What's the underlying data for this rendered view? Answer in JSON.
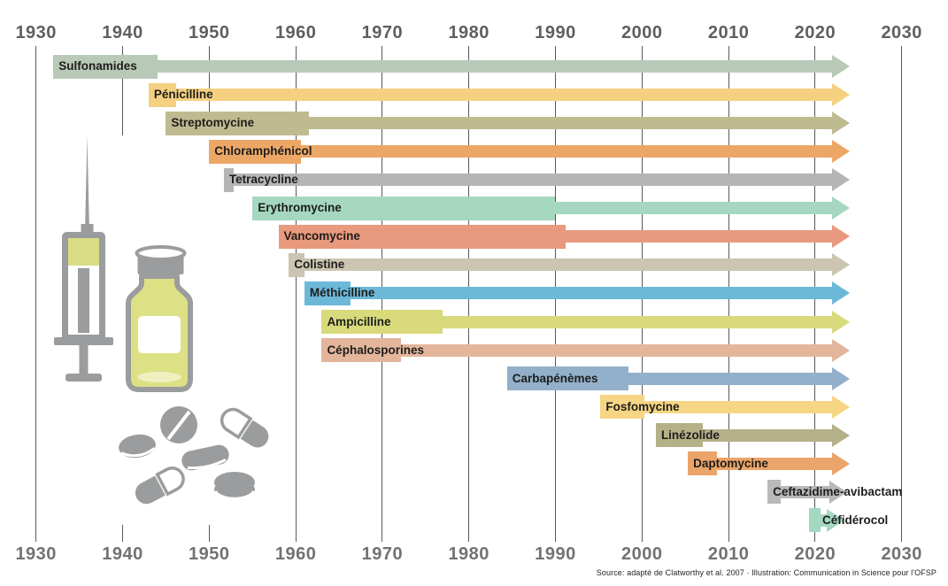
{
  "footer": {
    "text": "Source: adapté de Clatworthy et al. 2007 · Illustration: Communication in Science pour l'OFSP"
  },
  "illustration": {
    "icons": [
      "syringe-icon",
      "vial-icon",
      "pills-icon"
    ],
    "gray": "#9b9c9e",
    "liquid": "#d9dd85"
  },
  "axis": {
    "gridline_color": "#58595b",
    "top_label_color": "#5e5f62",
    "bottom_label_color": "#717274"
  },
  "chart_data": {
    "type": "timeline",
    "title": "",
    "xlabel": "",
    "ylabel": "",
    "x_axis": {
      "min": 1930,
      "max": 2030,
      "tick_interval": 10,
      "ticks": [
        1930,
        1940,
        1950,
        1960,
        1970,
        1980,
        1990,
        2000,
        2010,
        2020,
        2030
      ],
      "ticks_shown_top_and_bottom": true,
      "grid": true
    },
    "rows": [
      {
        "label": "Sulfonamides",
        "color": "#b8c9b8",
        "start": 1932,
        "plate_end": 1944,
        "arrow_end": 2024
      },
      {
        "label": "Pénicilline",
        "color": "#f5d080",
        "start": 1943,
        "plate_end": 1946.2,
        "arrow_end": 2024
      },
      {
        "label": "Streptomycine",
        "color": "#bfbb90",
        "start": 1945,
        "plate_end": 1961.5,
        "arrow_end": 2024
      },
      {
        "label": "Chloramphénicol",
        "color": "#eca767",
        "start": 1950,
        "plate_end": 1960.6,
        "arrow_end": 2024
      },
      {
        "label": "Tetracycline",
        "color": "#b5b5b5",
        "start": 1951.7,
        "plate_end": 1952.8,
        "arrow_end": 2024
      },
      {
        "label": "Erythromycine",
        "color": "#a6d7c0",
        "start": 1955,
        "plate_end": 1990,
        "arrow_end": 2024
      },
      {
        "label": "Vancomycine",
        "color": "#e9997d",
        "start": 1958,
        "plate_end": 1991.2,
        "arrow_end": 2024
      },
      {
        "label": "Colistine",
        "color": "#cbc5b2",
        "start": 1959.2,
        "plate_end": 1961,
        "arrow_end": 2024
      },
      {
        "label": "Méthicilline",
        "color": "#6cb8d8",
        "start": 1961,
        "plate_end": 1966.3,
        "arrow_end": 2024
      },
      {
        "label": "Ampicilline",
        "color": "#d8da7c",
        "start": 1963,
        "plate_end": 1977,
        "arrow_end": 2024
      },
      {
        "label": "Céphalosporines",
        "color": "#e3b69c",
        "start": 1963,
        "plate_end": 1972.2,
        "arrow_end": 2024
      },
      {
        "label": "Carbapénèmes",
        "color": "#92b0ca",
        "start": 1984.4,
        "plate_end": 1998.4,
        "arrow_end": 2024
      },
      {
        "label": "Fosfomycine",
        "color": "#f6d584",
        "start": 1995.2,
        "plate_end": 2000.3,
        "arrow_end": 2024
      },
      {
        "label": "Linézolide",
        "color": "#b4b088",
        "start": 2001.6,
        "plate_end": 2007,
        "arrow_end": 2024
      },
      {
        "label": "Daptomycine",
        "color": "#eba46a",
        "start": 2005.3,
        "plate_end": 2008.7,
        "arrow_end": 2024
      },
      {
        "label": "Ceftazidime-avibactam",
        "color": "#b9b9b9",
        "start": 2014.5,
        "plate_end": 2016,
        "arrow_end": 2023.7
      },
      {
        "label": "Céfidérocol",
        "color": "#a4d8c1",
        "start": 2019.3,
        "plate_end": 2020.6,
        "arrow_end": 2023.4,
        "label_indent": 15
      }
    ]
  }
}
